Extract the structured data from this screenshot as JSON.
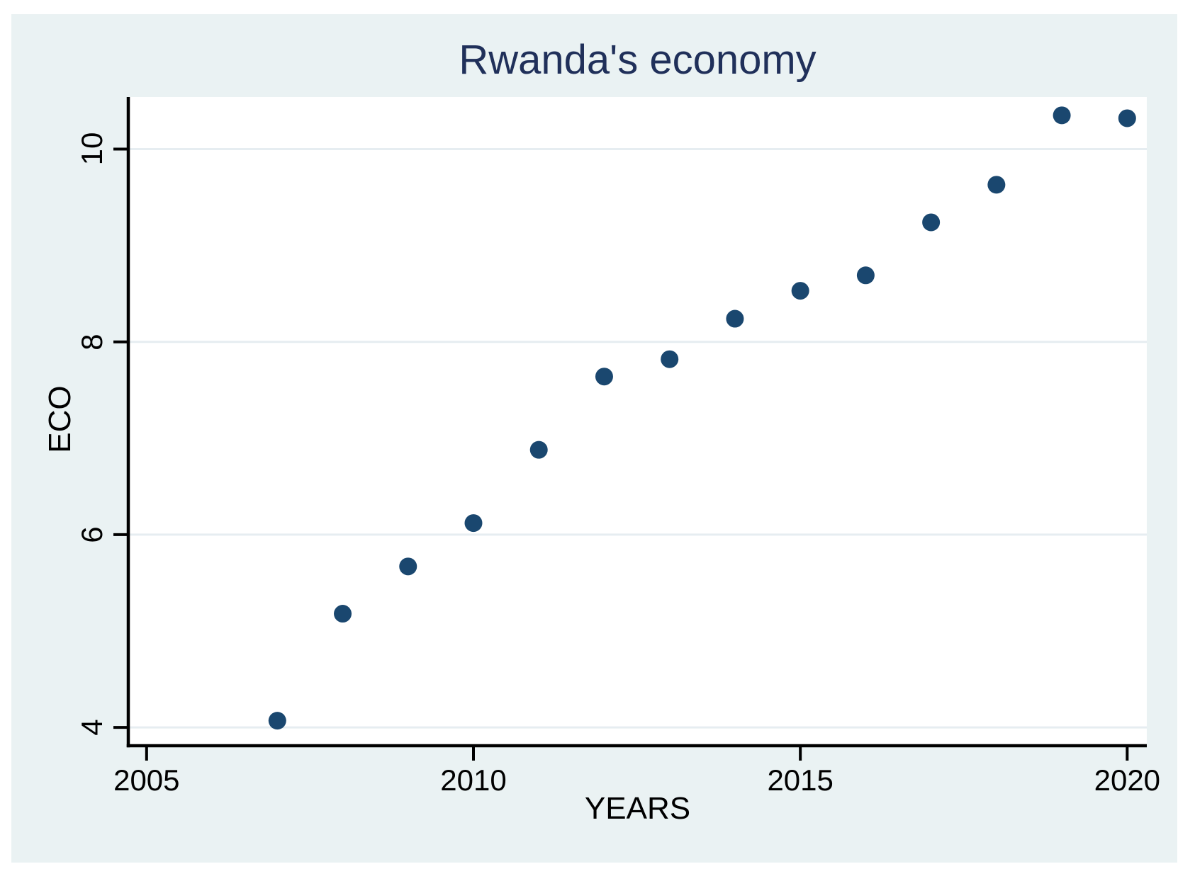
{
  "window": {
    "background": "#ffffff",
    "panel_background": "#eaf2f3"
  },
  "chart_data": {
    "type": "scatter",
    "title": "Rwanda's economy",
    "xlabel": "YEARS",
    "ylabel": "ECO",
    "x": [
      2007,
      2008,
      2009,
      2010,
      2011,
      2012,
      2013,
      2014,
      2015,
      2016,
      2017,
      2018,
      2019,
      2020
    ],
    "y": [
      4.07,
      5.18,
      5.67,
      6.12,
      6.88,
      7.64,
      7.82,
      8.24,
      8.53,
      8.69,
      9.24,
      9.63,
      10.35,
      10.32
    ],
    "xticks": [
      2005,
      2010,
      2015,
      2020
    ],
    "yticks": [
      4,
      6,
      8,
      10
    ],
    "xlim": [
      2004.72,
      2020.3
    ],
    "ylim": [
      3.81,
      10.54
    ],
    "grid": "horizontal",
    "legend": "none",
    "colors": {
      "marker": "#1a476f",
      "title": "#20305a",
      "gridline": "#e6edf1",
      "axis": "#000000",
      "plot_background": "#ffffff"
    }
  }
}
